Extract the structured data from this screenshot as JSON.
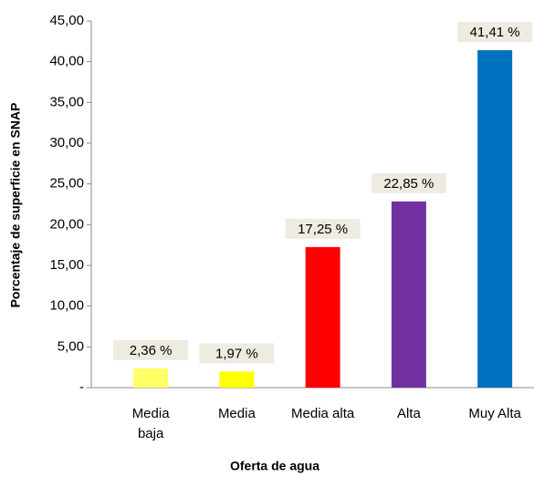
{
  "chart_data": {
    "type": "bar",
    "x_label": "Oferta de agua",
    "y_label": "Porcentaje  de superficie en  SNAP",
    "categories": [
      "Media\nbaja",
      "Media",
      "Media alta",
      "Alta",
      "Muy Alta"
    ],
    "values": [
      2.36,
      1.97,
      17.25,
      22.85,
      41.41
    ],
    "value_labels": [
      "2,36 %",
      "1,97 %",
      "17,25 %",
      "22,85 %",
      "41,41 %"
    ],
    "colors": [
      "#ffff66",
      "#ffff00",
      "#ff0000",
      "#7030a0",
      "#0070c0"
    ],
    "ylim": [
      0,
      45
    ],
    "yticks": [
      {
        "value": 0,
        "label": "-"
      },
      {
        "value": 5,
        "label": "5,00"
      },
      {
        "value": 10,
        "label": "10,00"
      },
      {
        "value": 15,
        "label": "15,00"
      },
      {
        "value": 20,
        "label": "20,00"
      },
      {
        "value": 25,
        "label": "25,00"
      },
      {
        "value": 30,
        "label": "30,00"
      },
      {
        "value": 35,
        "label": "35,00"
      },
      {
        "value": 40,
        "label": "40,00"
      },
      {
        "value": 45,
        "label": "45,00"
      }
    ]
  }
}
